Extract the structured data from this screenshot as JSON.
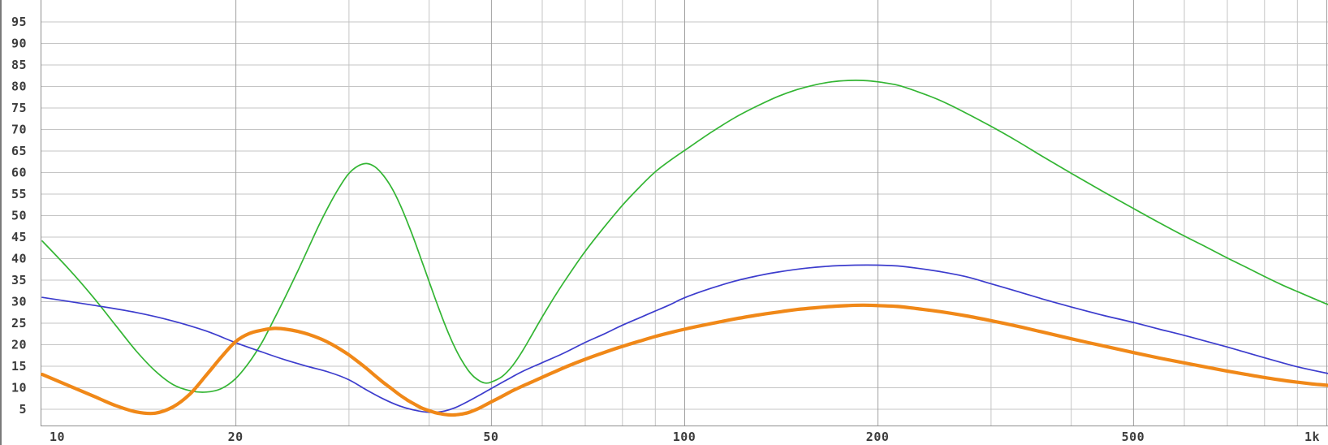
{
  "chart_data": {
    "type": "line",
    "title": "",
    "legend": "none",
    "grid": "on",
    "x_axis": {
      "scale": "log",
      "range": [
        10,
        1010
      ],
      "ticks": [
        {
          "value": 10,
          "label": "10"
        },
        {
          "value": 20,
          "label": "20"
        },
        {
          "value": 50,
          "label": "50"
        },
        {
          "value": 100,
          "label": "100"
        },
        {
          "value": 200,
          "label": "200"
        },
        {
          "value": 500,
          "label": "500"
        },
        {
          "value": 1000,
          "label": "1k"
        }
      ],
      "minor_gridlines": [
        30,
        40,
        60,
        70,
        80,
        90,
        300,
        400,
        600,
        700,
        800,
        900
      ]
    },
    "y_axis": {
      "range": [
        0,
        100
      ],
      "gridline_step": 5,
      "tick_labels": [
        "95",
        "90",
        "85",
        "80",
        "75",
        "70",
        "65",
        "60",
        "55",
        "50",
        "45",
        "40",
        "35",
        "30",
        "25",
        "20",
        "15",
        "10",
        "5"
      ],
      "tick_values": [
        95,
        90,
        85,
        80,
        75,
        70,
        65,
        60,
        55,
        50,
        45,
        40,
        35,
        30,
        25,
        20,
        15,
        10,
        5
      ]
    },
    "series": [
      {
        "name": "green-trace",
        "color": "#33b533",
        "stroke_width": 1.7,
        "points": [
          [
            10,
            44
          ],
          [
            11,
            37.5
          ],
          [
            12,
            31
          ],
          [
            13,
            24.5
          ],
          [
            14,
            18.5
          ],
          [
            15,
            13.8
          ],
          [
            16,
            10.6
          ],
          [
            17,
            9.2
          ],
          [
            18,
            8.9
          ],
          [
            19,
            9.7
          ],
          [
            20,
            12
          ],
          [
            21,
            15.8
          ],
          [
            22,
            20.5
          ],
          [
            23,
            26
          ],
          [
            24,
            31.5
          ],
          [
            25,
            37
          ],
          [
            26,
            42.5
          ],
          [
            27,
            47.8
          ],
          [
            28,
            52.4
          ],
          [
            29,
            56.4
          ],
          [
            30,
            59.6
          ],
          [
            31,
            61.4
          ],
          [
            32,
            62
          ],
          [
            33,
            61.2
          ],
          [
            34,
            59.2
          ],
          [
            35,
            56.4
          ],
          [
            36,
            52.8
          ],
          [
            37,
            48.6
          ],
          [
            38,
            44.1
          ],
          [
            39,
            39.4
          ],
          [
            40,
            34.8
          ],
          [
            41,
            30.3
          ],
          [
            42,
            26.1
          ],
          [
            43,
            22.3
          ],
          [
            44,
            19
          ],
          [
            45,
            16.3
          ],
          [
            46,
            14.1
          ],
          [
            47,
            12.5
          ],
          [
            48,
            11.5
          ],
          [
            49,
            11
          ],
          [
            50,
            11.2
          ],
          [
            52,
            12.5
          ],
          [
            54,
            15
          ],
          [
            56,
            18.5
          ],
          [
            58,
            22.4
          ],
          [
            60,
            26.2
          ],
          [
            63,
            31.4
          ],
          [
            66,
            36
          ],
          [
            70,
            41.5
          ],
          [
            75,
            47.2
          ],
          [
            80,
            52.2
          ],
          [
            85,
            56.4
          ],
          [
            90,
            60
          ],
          [
            95,
            62.7
          ],
          [
            100,
            65
          ],
          [
            110,
            69.2
          ],
          [
            120,
            72.7
          ],
          [
            130,
            75.4
          ],
          [
            140,
            77.6
          ],
          [
            150,
            79.2
          ],
          [
            160,
            80.3
          ],
          [
            170,
            81
          ],
          [
            180,
            81.3
          ],
          [
            190,
            81.3
          ],
          [
            200,
            81
          ],
          [
            215,
            80.2
          ],
          [
            230,
            78.8
          ],
          [
            250,
            76.7
          ],
          [
            270,
            74.3
          ],
          [
            300,
            70.7
          ],
          [
            330,
            67.2
          ],
          [
            360,
            63.8
          ],
          [
            400,
            59.8
          ],
          [
            450,
            55.4
          ],
          [
            500,
            51.6
          ],
          [
            550,
            48.2
          ],
          [
            600,
            45.2
          ],
          [
            650,
            42.6
          ],
          [
            700,
            40.1
          ],
          [
            750,
            37.9
          ],
          [
            800,
            35.8
          ],
          [
            850,
            33.9
          ],
          [
            900,
            32.3
          ],
          [
            950,
            30.8
          ],
          [
            1000,
            29.4
          ],
          [
            1010,
            29.2
          ]
        ]
      },
      {
        "name": "blue-trace",
        "color": "#3c3ccd",
        "stroke_width": 1.7,
        "points": [
          [
            10,
            30.9
          ],
          [
            12,
            29.1
          ],
          [
            14,
            27.4
          ],
          [
            16,
            25.4
          ],
          [
            18,
            23.1
          ],
          [
            20,
            20.4
          ],
          [
            22,
            18.2
          ],
          [
            24,
            16.3
          ],
          [
            26,
            14.8
          ],
          [
            28,
            13.5
          ],
          [
            30,
            11.8
          ],
          [
            32,
            9.4
          ],
          [
            34,
            7.3
          ],
          [
            36,
            5.7
          ],
          [
            38,
            4.7
          ],
          [
            40,
            4.2
          ],
          [
            42,
            4.4
          ],
          [
            44,
            5.3
          ],
          [
            46,
            6.7
          ],
          [
            48,
            8.2
          ],
          [
            50,
            9.7
          ],
          [
            53,
            11.8
          ],
          [
            56,
            13.7
          ],
          [
            60,
            15.7
          ],
          [
            65,
            18
          ],
          [
            70,
            20.4
          ],
          [
            75,
            22.4
          ],
          [
            80,
            24.4
          ],
          [
            85,
            26.1
          ],
          [
            90,
            27.7
          ],
          [
            95,
            29.2
          ],
          [
            100,
            30.8
          ],
          [
            110,
            33
          ],
          [
            120,
            34.7
          ],
          [
            130,
            35.9
          ],
          [
            140,
            36.8
          ],
          [
            155,
            37.7
          ],
          [
            170,
            38.2
          ],
          [
            185,
            38.4
          ],
          [
            200,
            38.4
          ],
          [
            215,
            38.2
          ],
          [
            230,
            37.7
          ],
          [
            250,
            36.9
          ],
          [
            275,
            35.7
          ],
          [
            300,
            34.1
          ],
          [
            330,
            32.3
          ],
          [
            360,
            30.6
          ],
          [
            400,
            28.7
          ],
          [
            450,
            26.7
          ],
          [
            500,
            25.1
          ],
          [
            550,
            23.5
          ],
          [
            600,
            22.1
          ],
          [
            650,
            20.7
          ],
          [
            700,
            19.4
          ],
          [
            750,
            18.1
          ],
          [
            800,
            16.9
          ],
          [
            850,
            15.8
          ],
          [
            900,
            14.8
          ],
          [
            950,
            14
          ],
          [
            1000,
            13.3
          ],
          [
            1010,
            13.2
          ]
        ]
      },
      {
        "name": "orange-trace",
        "color": "#f08818",
        "stroke_width": 4.2,
        "points": [
          [
            10,
            13
          ],
          [
            11,
            10.4
          ],
          [
            12,
            8
          ],
          [
            13,
            5.8
          ],
          [
            14,
            4.3
          ],
          [
            15,
            4
          ],
          [
            16,
            5.5
          ],
          [
            17,
            8.5
          ],
          [
            18,
            12.8
          ],
          [
            19,
            17
          ],
          [
            20,
            20.6
          ],
          [
            21,
            22.5
          ],
          [
            22,
            23.3
          ],
          [
            23,
            23.7
          ],
          [
            24,
            23.5
          ],
          [
            25,
            23
          ],
          [
            26,
            22.3
          ],
          [
            27,
            21.4
          ],
          [
            28,
            20.3
          ],
          [
            29,
            19
          ],
          [
            30,
            17.6
          ],
          [
            31,
            16
          ],
          [
            32,
            14.4
          ],
          [
            33,
            12.7
          ],
          [
            34,
            11.1
          ],
          [
            35,
            9.7
          ],
          [
            36,
            8.3
          ],
          [
            37,
            7.1
          ],
          [
            38,
            6.1
          ],
          [
            39,
            5.2
          ],
          [
            40,
            4.6
          ],
          [
            41,
            4.1
          ],
          [
            42,
            3.8
          ],
          [
            43,
            3.6
          ],
          [
            44,
            3.6
          ],
          [
            45,
            3.8
          ],
          [
            46,
            4.1
          ],
          [
            47,
            4.6
          ],
          [
            48,
            5.2
          ],
          [
            49,
            5.9
          ],
          [
            50,
            6.6
          ],
          [
            52,
            7.9
          ],
          [
            54,
            9.2
          ],
          [
            56,
            10.3
          ],
          [
            58,
            11.3
          ],
          [
            60,
            12.3
          ],
          [
            63,
            13.7
          ],
          [
            66,
            15
          ],
          [
            70,
            16.5
          ],
          [
            75,
            18.1
          ],
          [
            80,
            19.5
          ],
          [
            85,
            20.7
          ],
          [
            90,
            21.8
          ],
          [
            95,
            22.7
          ],
          [
            100,
            23.5
          ],
          [
            110,
            24.8
          ],
          [
            120,
            25.9
          ],
          [
            130,
            26.8
          ],
          [
            140,
            27.5
          ],
          [
            150,
            28.1
          ],
          [
            160,
            28.5
          ],
          [
            170,
            28.8
          ],
          [
            180,
            29
          ],
          [
            190,
            29.1
          ],
          [
            200,
            29
          ],
          [
            215,
            28.8
          ],
          [
            230,
            28.3
          ],
          [
            250,
            27.6
          ],
          [
            275,
            26.6
          ],
          [
            300,
            25.5
          ],
          [
            330,
            24.2
          ],
          [
            360,
            22.9
          ],
          [
            400,
            21.3
          ],
          [
            450,
            19.6
          ],
          [
            500,
            18.1
          ],
          [
            550,
            16.8
          ],
          [
            600,
            15.7
          ],
          [
            650,
            14.7
          ],
          [
            700,
            13.8
          ],
          [
            750,
            13
          ],
          [
            800,
            12.3
          ],
          [
            850,
            11.7
          ],
          [
            900,
            11.2
          ],
          [
            950,
            10.8
          ],
          [
            1000,
            10.5
          ],
          [
            1010,
            10.4
          ]
        ]
      }
    ],
    "style": {
      "background": "#ffffff",
      "grid_color": "#c5c5c5",
      "major_grid_color": "#a0a0a0",
      "axis_color": "#8f8f8f",
      "label_color": "#3c3c3c",
      "left_border_color": "#7a7a7a"
    }
  }
}
